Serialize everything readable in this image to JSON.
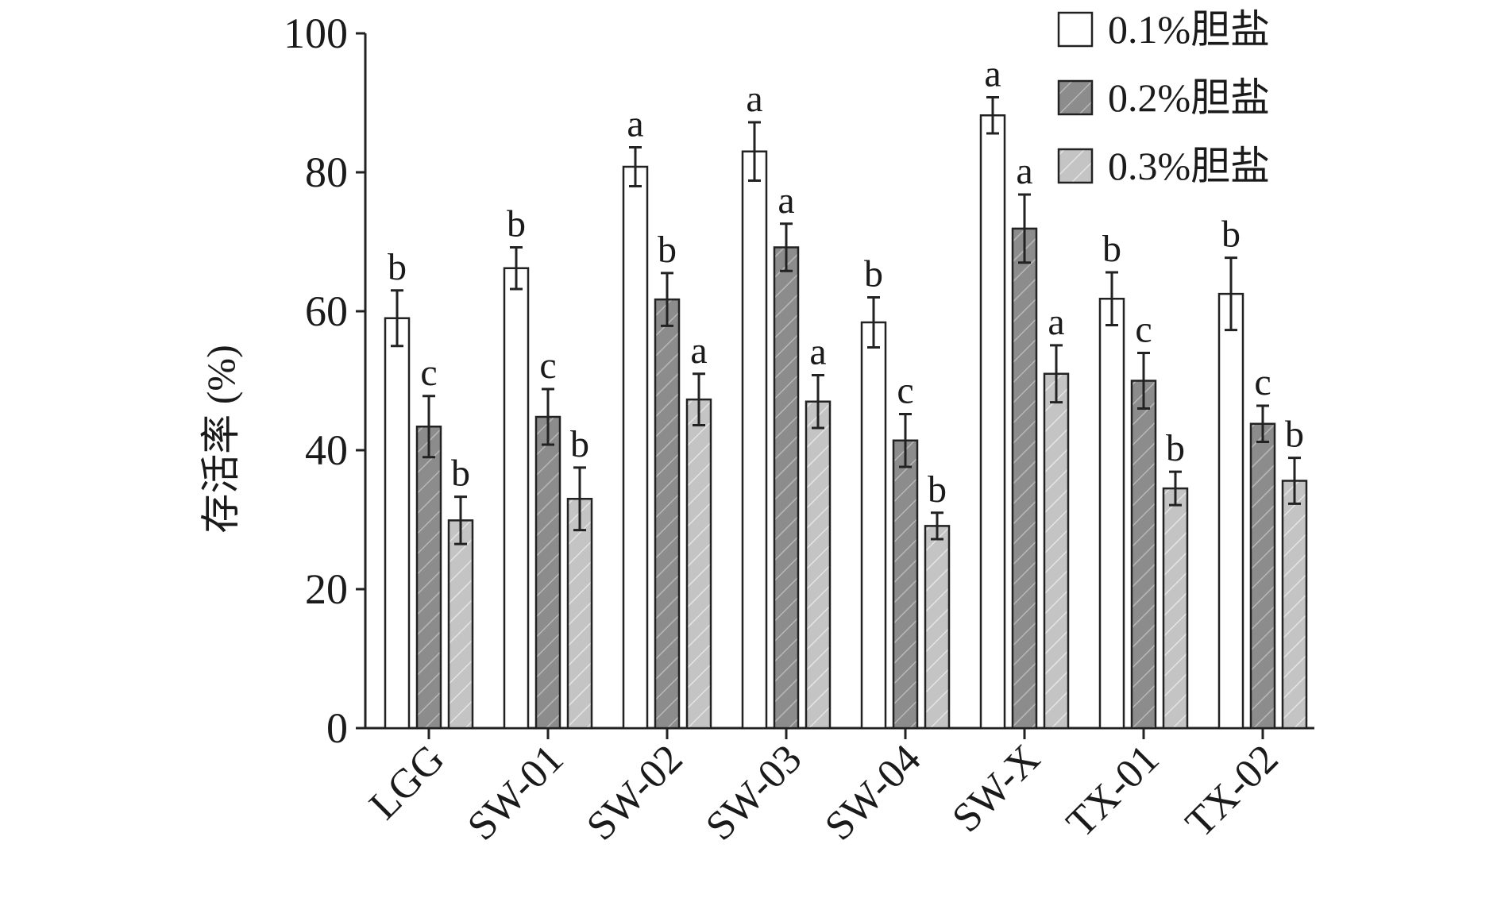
{
  "chart_data": {
    "type": "bar",
    "ylabel": "存活率 (%)",
    "ylim": [
      0,
      100
    ],
    "yticks": [
      "0",
      "20",
      "40",
      "60",
      "80",
      "100"
    ],
    "categories": [
      "LGG",
      "SW-01",
      "SW-02",
      "SW-03",
      "SW-04",
      "SW-X",
      "TX-01",
      "TX-02"
    ],
    "legend_position": "top-right",
    "grid": false,
    "series": [
      {
        "name": "0.1%胆盐",
        "fill": "#ffffff",
        "hatch": false,
        "values": [
          59.0,
          66.2,
          80.8,
          83.0,
          58.4,
          88.2,
          61.8,
          62.5
        ],
        "errors": [
          4.0,
          3.0,
          2.8,
          4.2,
          3.6,
          2.6,
          3.8,
          5.2
        ],
        "letters": [
          "b",
          "b",
          "a",
          "a",
          "b",
          "a",
          "b",
          "b"
        ]
      },
      {
        "name": "0.2%胆盐",
        "fill": "#8c8c8c",
        "hatch": true,
        "values": [
          43.4,
          44.8,
          61.7,
          69.2,
          41.4,
          71.9,
          50.0,
          43.8
        ],
        "errors": [
          4.4,
          4.0,
          3.8,
          3.4,
          3.8,
          4.9,
          4.0,
          2.6
        ],
        "letters": [
          "c",
          "c",
          "b",
          "a",
          "c",
          "a",
          "c",
          "c"
        ]
      },
      {
        "name": "0.3%胆盐",
        "fill": "#c4c4c4",
        "hatch": true,
        "values": [
          29.9,
          33.0,
          47.3,
          47.0,
          29.1,
          51.0,
          34.5,
          35.6
        ],
        "errors": [
          3.4,
          4.5,
          3.7,
          3.8,
          1.9,
          4.1,
          2.4,
          3.3
        ],
        "letters": [
          "b",
          "b",
          "a",
          "a",
          "b",
          "a",
          "b",
          "b"
        ]
      }
    ]
  }
}
